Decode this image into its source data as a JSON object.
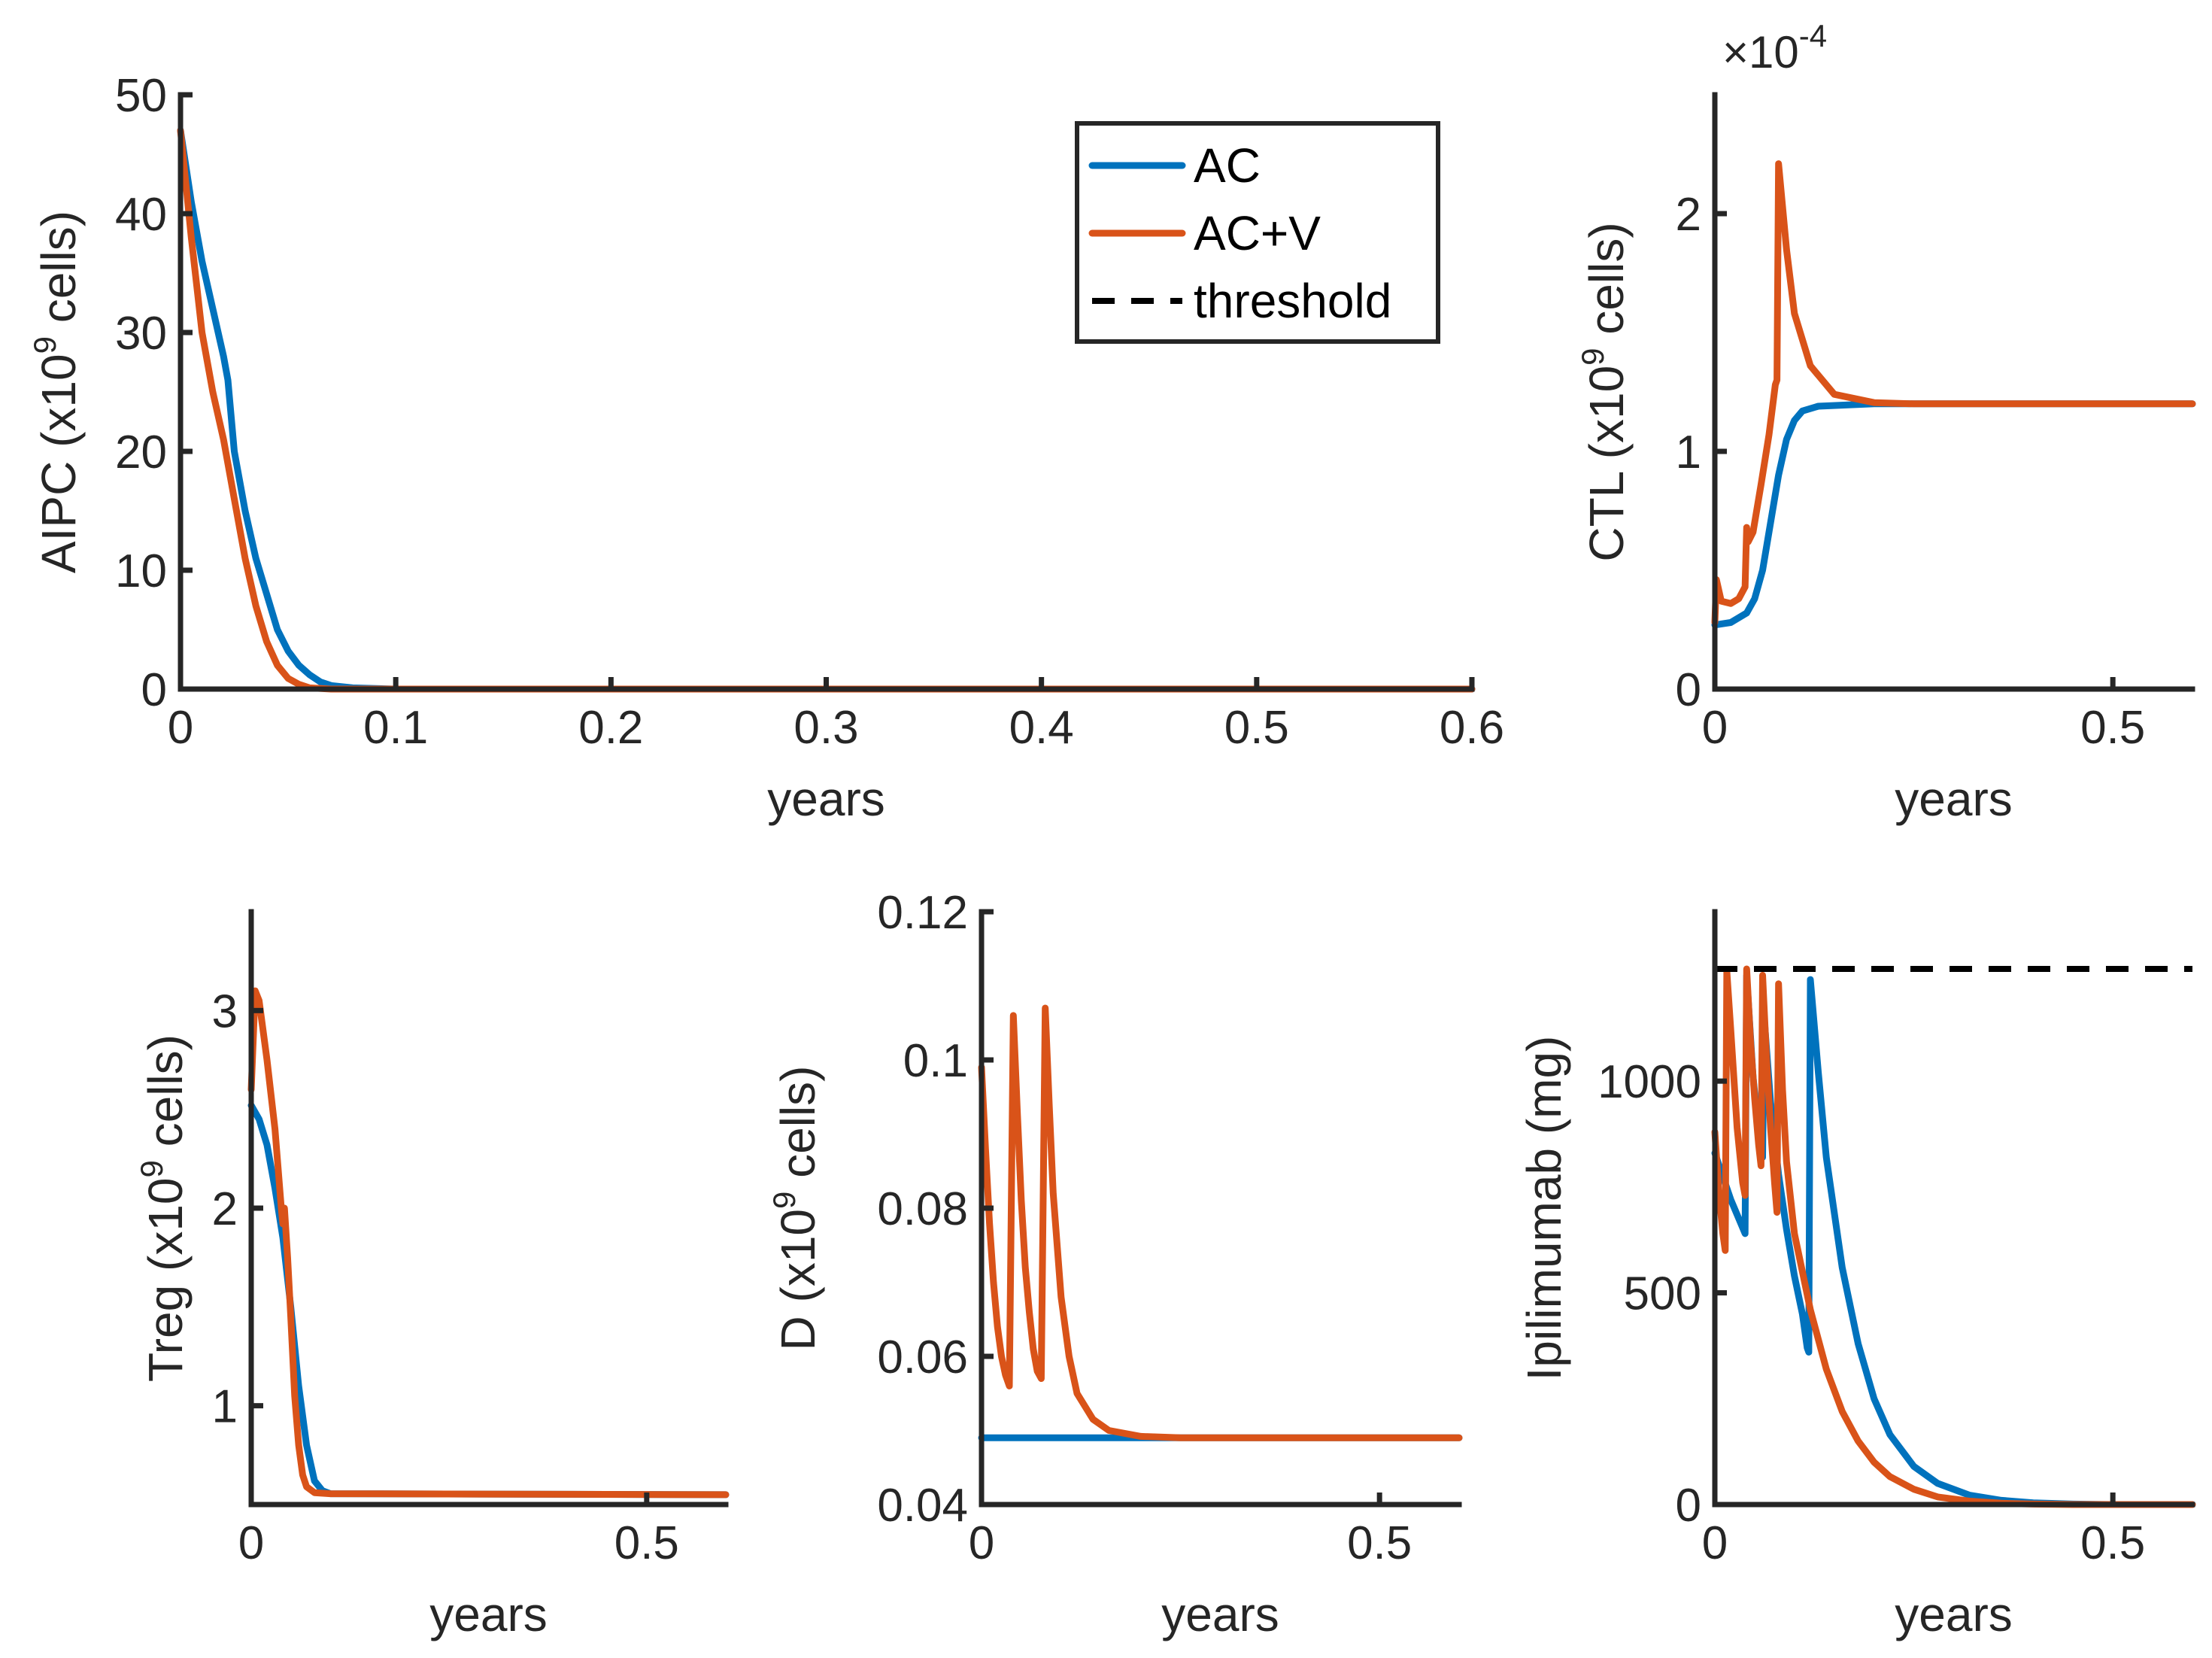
{
  "colors": {
    "AC": "#0072BD",
    "ACV": "#D95319",
    "threshold": "#000000",
    "axis": "#262626"
  },
  "legend": [
    {
      "key": "AC",
      "label": "AC",
      "style": "solid",
      "color": "#0072BD"
    },
    {
      "key": "ACV",
      "label": "AC+V",
      "style": "solid",
      "color": "#D95319"
    },
    {
      "key": "threshold",
      "label": "threshold",
      "style": "dashed",
      "color": "#000000"
    }
  ],
  "chart_data": [
    {
      "id": "aipc",
      "type": "line",
      "ylabel_main": "AIPC (x10",
      "ylabel_exp": "9",
      "ylabel_tail": " cells)",
      "xlabel": "years",
      "xlim": [
        0,
        0.6
      ],
      "ylim": [
        0,
        50
      ],
      "xticks": [
        0,
        0.1,
        0.2,
        0.3,
        0.4,
        0.5,
        0.6
      ],
      "xtick_labels": [
        "0",
        "0.1",
        "0.2",
        "0.3",
        "0.4",
        "0.5",
        "0.6"
      ],
      "yticks": [
        0,
        10,
        20,
        30,
        40,
        50
      ],
      "ytick_labels": [
        "0",
        "10",
        "20",
        "30",
        "40",
        "50"
      ],
      "exponent_label": "",
      "series": [
        {
          "name": "AC",
          "color": "#0072BD",
          "points": [
            [
              0,
              47
            ],
            [
              0.005,
              41
            ],
            [
              0.01,
              36
            ],
            [
              0.015,
              32
            ],
            [
              0.02,
              28
            ],
            [
              0.022,
              26
            ],
            [
              0.025,
              20
            ],
            [
              0.03,
              15
            ],
            [
              0.035,
              11
            ],
            [
              0.04,
              8
            ],
            [
              0.045,
              5
            ],
            [
              0.05,
              3.2
            ],
            [
              0.055,
              2
            ],
            [
              0.06,
              1.2
            ],
            [
              0.065,
              0.6
            ],
            [
              0.07,
              0.3
            ],
            [
              0.08,
              0.1
            ],
            [
              0.1,
              0
            ],
            [
              0.6,
              0
            ]
          ]
        },
        {
          "name": "AC+V",
          "color": "#D95319",
          "points": [
            [
              0,
              47
            ],
            [
              0.005,
              38
            ],
            [
              0.01,
              30
            ],
            [
              0.015,
              25
            ],
            [
              0.02,
              21
            ],
            [
              0.025,
              16
            ],
            [
              0.03,
              11
            ],
            [
              0.035,
              7
            ],
            [
              0.04,
              4
            ],
            [
              0.045,
              2
            ],
            [
              0.05,
              0.9
            ],
            [
              0.055,
              0.4
            ],
            [
              0.06,
              0.1
            ],
            [
              0.07,
              0
            ],
            [
              0.6,
              0
            ]
          ]
        }
      ]
    },
    {
      "id": "ctl",
      "type": "line",
      "ylabel_main": "CTL (x10",
      "ylabel_exp": "9",
      "ylabel_tail": " cells)",
      "xlabel": "years",
      "xlim": [
        0,
        0.6
      ],
      "ylim": [
        0,
        2.5
      ],
      "xticks": [
        0,
        0.5
      ],
      "xtick_labels": [
        "0",
        "0.5"
      ],
      "yticks": [
        0,
        1,
        2
      ],
      "ytick_labels": [
        "0",
        "1",
        "2"
      ],
      "exponent_label": "×10",
      "exponent_power": "-4",
      "series": [
        {
          "name": "AC",
          "color": "#0072BD",
          "points": [
            [
              0,
              0.27
            ],
            [
              0.02,
              0.28
            ],
            [
              0.04,
              0.32
            ],
            [
              0.05,
              0.38
            ],
            [
              0.06,
              0.5
            ],
            [
              0.07,
              0.7
            ],
            [
              0.08,
              0.9
            ],
            [
              0.09,
              1.05
            ],
            [
              0.1,
              1.13
            ],
            [
              0.11,
              1.17
            ],
            [
              0.13,
              1.19
            ],
            [
              0.2,
              1.2
            ],
            [
              0.6,
              1.2
            ]
          ]
        },
        {
          "name": "AC+V",
          "color": "#D95319",
          "points": [
            [
              0,
              0.28
            ],
            [
              0.002,
              0.46
            ],
            [
              0.008,
              0.37
            ],
            [
              0.02,
              0.36
            ],
            [
              0.03,
              0.38
            ],
            [
              0.038,
              0.43
            ],
            [
              0.04,
              0.68
            ],
            [
              0.042,
              0.62
            ],
            [
              0.048,
              0.66
            ],
            [
              0.058,
              0.86
            ],
            [
              0.068,
              1.07
            ],
            [
              0.076,
              1.28
            ],
            [
              0.078,
              1.3
            ],
            [
              0.08,
              2.21
            ],
            [
              0.09,
              1.85
            ],
            [
              0.1,
              1.58
            ],
            [
              0.12,
              1.36
            ],
            [
              0.15,
              1.24
            ],
            [
              0.2,
              1.205
            ],
            [
              0.25,
              1.2
            ],
            [
              0.6,
              1.2
            ]
          ]
        }
      ]
    },
    {
      "id": "treg",
      "type": "line",
      "ylabel_main": "Treg (x10",
      "ylabel_exp": "9",
      "ylabel_tail": " cells)",
      "xlabel": "years",
      "xlim": [
        0,
        0.6
      ],
      "ylim": [
        0.5,
        3.5
      ],
      "xticks": [
        0,
        0.5
      ],
      "xtick_labels": [
        "0",
        "0.5"
      ],
      "yticks": [
        1,
        2,
        3
      ],
      "ytick_labels": [
        "1",
        "2",
        "3"
      ],
      "exponent_label": "",
      "series": [
        {
          "name": "AC",
          "color": "#0072BD",
          "points": [
            [
              0,
              2.52
            ],
            [
              0.01,
              2.45
            ],
            [
              0.02,
              2.32
            ],
            [
              0.03,
              2.1
            ],
            [
              0.04,
              1.85
            ],
            [
              0.05,
              1.5
            ],
            [
              0.06,
              1.1
            ],
            [
              0.07,
              0.8
            ],
            [
              0.08,
              0.62
            ],
            [
              0.09,
              0.57
            ],
            [
              0.1,
              0.555
            ],
            [
              0.6,
              0.55
            ]
          ]
        },
        {
          "name": "AC+V",
          "color": "#D95319",
          "points": [
            [
              0,
              2.6
            ],
            [
              0.005,
              3.1
            ],
            [
              0.01,
              3.05
            ],
            [
              0.02,
              2.75
            ],
            [
              0.03,
              2.4
            ],
            [
              0.038,
              2.0
            ],
            [
              0.04,
              1.92
            ],
            [
              0.042,
              2.0
            ],
            [
              0.046,
              1.75
            ],
            [
              0.05,
              1.45
            ],
            [
              0.055,
              1.05
            ],
            [
              0.06,
              0.8
            ],
            [
              0.065,
              0.65
            ],
            [
              0.07,
              0.59
            ],
            [
              0.08,
              0.56
            ],
            [
              0.1,
              0.555
            ],
            [
              0.6,
              0.55
            ]
          ]
        }
      ]
    },
    {
      "id": "d",
      "type": "line",
      "ylabel_main": "D (x10",
      "ylabel_exp": "9",
      "ylabel_tail": " cells)",
      "xlabel": "years",
      "xlim": [
        0,
        0.6
      ],
      "ylim": [
        0.04,
        0.12
      ],
      "xticks": [
        0,
        0.5
      ],
      "xtick_labels": [
        "0",
        "0.5"
      ],
      "yticks": [
        0.04,
        0.06,
        0.08,
        0.1,
        0.12
      ],
      "ytick_labels": [
        "0.04",
        "0.06",
        "0.08",
        "0.1",
        "0.12"
      ],
      "exponent_label": "",
      "series": [
        {
          "name": "AC",
          "color": "#0072BD",
          "points": [
            [
              0,
              0.049
            ],
            [
              0.6,
              0.049
            ]
          ]
        },
        {
          "name": "AC+V",
          "color": "#D95319",
          "points": [
            [
              0,
              0.099
            ],
            [
              0.005,
              0.088
            ],
            [
              0.01,
              0.078
            ],
            [
              0.015,
              0.07
            ],
            [
              0.02,
              0.064
            ],
            [
              0.025,
              0.06
            ],
            [
              0.03,
              0.0575
            ],
            [
              0.035,
              0.056
            ],
            [
              0.04,
              0.106
            ],
            [
              0.045,
              0.093
            ],
            [
              0.05,
              0.081
            ],
            [
              0.055,
              0.072
            ],
            [
              0.06,
              0.066
            ],
            [
              0.065,
              0.061
            ],
            [
              0.07,
              0.058
            ],
            [
              0.075,
              0.057
            ],
            [
              0.08,
              0.107
            ],
            [
              0.085,
              0.094
            ],
            [
              0.09,
              0.082
            ],
            [
              0.1,
              0.068
            ],
            [
              0.11,
              0.06
            ],
            [
              0.12,
              0.055
            ],
            [
              0.14,
              0.0515
            ],
            [
              0.16,
              0.05
            ],
            [
              0.2,
              0.0492
            ],
            [
              0.25,
              0.049
            ],
            [
              0.6,
              0.049
            ]
          ]
        }
      ]
    },
    {
      "id": "ipi",
      "type": "line",
      "ylabel_main": "Ipilimumab (mg)",
      "ylabel_exp": "",
      "ylabel_tail": "",
      "xlabel": "years",
      "xlim": [
        0,
        0.6
      ],
      "ylim": [
        0,
        1400
      ],
      "xticks": [
        0,
        0.5
      ],
      "xtick_labels": [
        "0",
        "0.5"
      ],
      "yticks": [
        0,
        500,
        1000
      ],
      "ytick_labels": [
        "0",
        "500",
        "1000"
      ],
      "exponent_label": "",
      "threshold": 1265,
      "series": [
        {
          "name": "AC",
          "color": "#0072BD",
          "points": [
            [
              0,
              830
            ],
            [
              0.02,
              720
            ],
            [
              0.038,
              640
            ],
            [
              0.04,
              1250
            ],
            [
              0.048,
              1010
            ],
            [
              0.056,
              860
            ],
            [
              0.06,
              820
            ],
            [
              0.062,
              1150
            ],
            [
              0.07,
              950
            ],
            [
              0.08,
              780
            ],
            [
              0.09,
              650
            ],
            [
              0.1,
              540
            ],
            [
              0.11,
              450
            ],
            [
              0.116,
              370
            ],
            [
              0.118,
              360
            ],
            [
              0.12,
              1240
            ],
            [
              0.13,
              1020
            ],
            [
              0.14,
              820
            ],
            [
              0.16,
              560
            ],
            [
              0.18,
              380
            ],
            [
              0.2,
              250
            ],
            [
              0.22,
              165
            ],
            [
              0.25,
              90
            ],
            [
              0.28,
              50
            ],
            [
              0.32,
              22
            ],
            [
              0.36,
              10
            ],
            [
              0.4,
              4
            ],
            [
              0.45,
              1
            ],
            [
              0.5,
              0
            ],
            [
              0.6,
              0
            ]
          ]
        },
        {
          "name": "AC+V",
          "color": "#D95319",
          "points": [
            [
              0,
              880
            ],
            [
              0.005,
              740
            ],
            [
              0.01,
              640
            ],
            [
              0.013,
              600
            ],
            [
              0.015,
              1260
            ],
            [
              0.02,
              1120
            ],
            [
              0.028,
              890
            ],
            [
              0.035,
              760
            ],
            [
              0.038,
              730
            ],
            [
              0.04,
              1265
            ],
            [
              0.045,
              1090
            ],
            [
              0.05,
              960
            ],
            [
              0.055,
              850
            ],
            [
              0.058,
              800
            ],
            [
              0.06,
              1250
            ],
            [
              0.065,
              1050
            ],
            [
              0.07,
              890
            ],
            [
              0.075,
              760
            ],
            [
              0.078,
              690
            ],
            [
              0.08,
              1230
            ],
            [
              0.085,
              980
            ],
            [
              0.09,
              810
            ],
            [
              0.1,
              640
            ],
            [
              0.12,
              460
            ],
            [
              0.14,
              320
            ],
            [
              0.16,
              220
            ],
            [
              0.18,
              150
            ],
            [
              0.2,
              100
            ],
            [
              0.22,
              66
            ],
            [
              0.25,
              36
            ],
            [
              0.28,
              18
            ],
            [
              0.32,
              8
            ],
            [
              0.36,
              3
            ],
            [
              0.4,
              1
            ],
            [
              0.45,
              0
            ],
            [
              0.6,
              0
            ]
          ]
        }
      ]
    }
  ]
}
